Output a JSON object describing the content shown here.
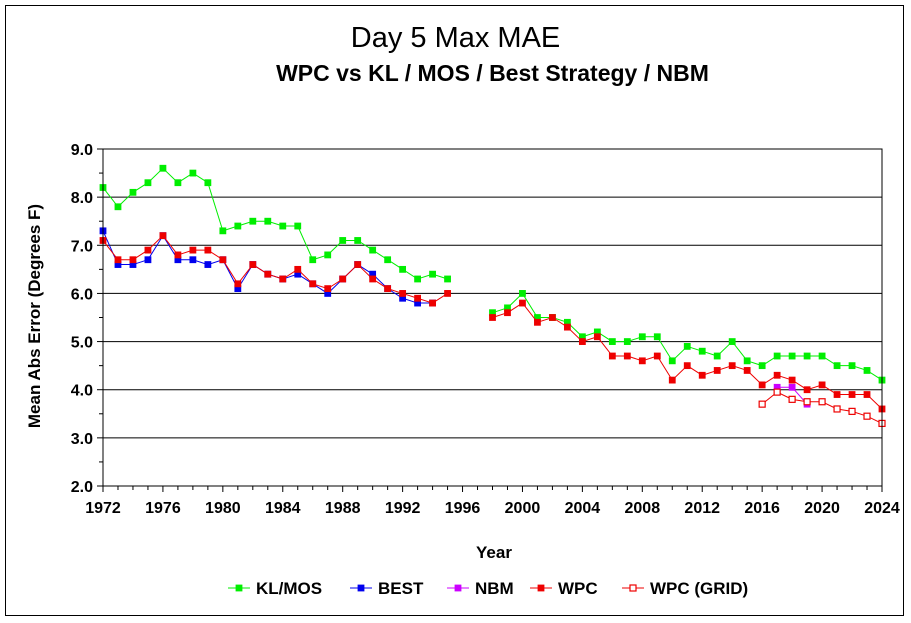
{
  "chart_data": {
    "type": "line",
    "title": "Day 5 Max MAE",
    "subtitle": "WPC vs KL / MOS / Best Strategy / NBM",
    "xlabel": "Year",
    "ylabel": "Mean Abs Error (Degrees F)",
    "xlim": [
      1972,
      2024
    ],
    "ylim": [
      2.0,
      9.0
    ],
    "x_ticks": [
      "1972",
      "1976",
      "1980",
      "1984",
      "1988",
      "1992",
      "1996",
      "2000",
      "2004",
      "2008",
      "2012",
      "2016",
      "2020",
      "2024"
    ],
    "y_ticks": [
      "2.0",
      "3.0",
      "4.0",
      "5.0",
      "6.0",
      "7.0",
      "8.0",
      "9.0"
    ],
    "grid": "horizontal",
    "legend_position": "bottom",
    "series": [
      {
        "name": "KL/MOS",
        "color": "#00ee00",
        "marker": "filled-square",
        "points": [
          [
            1972,
            8.2
          ],
          [
            1973,
            7.8
          ],
          [
            1974,
            8.1
          ],
          [
            1975,
            8.3
          ],
          [
            1976,
            8.6
          ],
          [
            1977,
            8.3
          ],
          [
            1978,
            8.5
          ],
          [
            1979,
            8.3
          ],
          [
            1980,
            7.3
          ],
          [
            1981,
            7.4
          ],
          [
            1982,
            7.5
          ],
          [
            1983,
            7.5
          ],
          [
            1984,
            7.4
          ],
          [
            1985,
            7.4
          ],
          [
            1986,
            6.7
          ],
          [
            1987,
            6.8
          ],
          [
            1988,
            7.1
          ],
          [
            1989,
            7.1
          ],
          [
            1990,
            6.9
          ],
          [
            1991,
            6.7
          ],
          [
            1992,
            6.5
          ],
          [
            1993,
            6.3
          ],
          [
            1994,
            6.4
          ],
          [
            1995,
            6.3
          ],
          [
            1998,
            5.6
          ],
          [
            1999,
            5.7
          ],
          [
            2000,
            6.0
          ],
          [
            2001,
            5.5
          ],
          [
            2002,
            5.5
          ],
          [
            2003,
            5.4
          ],
          [
            2004,
            5.1
          ],
          [
            2005,
            5.2
          ],
          [
            2006,
            5.0
          ],
          [
            2007,
            5.0
          ],
          [
            2008,
            5.1
          ],
          [
            2009,
            5.1
          ],
          [
            2010,
            4.6
          ],
          [
            2011,
            4.9
          ],
          [
            2012,
            4.8
          ],
          [
            2013,
            4.7
          ],
          [
            2014,
            5.0
          ],
          [
            2015,
            4.6
          ],
          [
            2016,
            4.5
          ],
          [
            2017,
            4.7
          ],
          [
            2018,
            4.7
          ],
          [
            2019,
            4.7
          ],
          [
            2020,
            4.7
          ],
          [
            2021,
            4.5
          ],
          [
            2022,
            4.5
          ],
          [
            2023,
            4.4
          ],
          [
            2024,
            4.2
          ]
        ]
      },
      {
        "name": "BEST",
        "color": "#0000ee",
        "marker": "filled-square",
        "points": [
          [
            1972,
            7.3
          ],
          [
            1973,
            6.6
          ],
          [
            1974,
            6.6
          ],
          [
            1975,
            6.7
          ],
          [
            1976,
            7.2
          ],
          [
            1977,
            6.7
          ],
          [
            1978,
            6.7
          ],
          [
            1979,
            6.6
          ],
          [
            1980,
            6.7
          ],
          [
            1981,
            6.1
          ],
          [
            1982,
            6.6
          ],
          [
            1983,
            6.4
          ],
          [
            1984,
            6.3
          ],
          [
            1985,
            6.4
          ],
          [
            1986,
            6.2
          ],
          [
            1987,
            6.0
          ],
          [
            1988,
            6.3
          ],
          [
            1989,
            6.6
          ],
          [
            1990,
            6.4
          ],
          [
            1991,
            6.1
          ],
          [
            1992,
            5.9
          ],
          [
            1993,
            5.8
          ],
          [
            1994,
            5.8
          ]
        ]
      },
      {
        "name": "NBM",
        "color": "#cc00ff",
        "marker": "filled-square",
        "points": [
          [
            2017,
            4.05
          ],
          [
            2018,
            4.05
          ],
          [
            2019,
            3.7
          ]
        ]
      },
      {
        "name": "WPC",
        "color": "#ee0000",
        "marker": "filled-square",
        "points": [
          [
            1972,
            7.1
          ],
          [
            1973,
            6.7
          ],
          [
            1974,
            6.7
          ],
          [
            1975,
            6.9
          ],
          [
            1976,
            7.2
          ],
          [
            1977,
            6.8
          ],
          [
            1978,
            6.9
          ],
          [
            1979,
            6.9
          ],
          [
            1980,
            6.7
          ],
          [
            1981,
            6.2
          ],
          [
            1982,
            6.6
          ],
          [
            1983,
            6.4
          ],
          [
            1984,
            6.3
          ],
          [
            1985,
            6.5
          ],
          [
            1986,
            6.2
          ],
          [
            1987,
            6.1
          ],
          [
            1988,
            6.3
          ],
          [
            1989,
            6.6
          ],
          [
            1990,
            6.3
          ],
          [
            1991,
            6.1
          ],
          [
            1992,
            6.0
          ],
          [
            1993,
            5.9
          ],
          [
            1994,
            5.8
          ],
          [
            1995,
            6.0
          ],
          [
            1998,
            5.5
          ],
          [
            1999,
            5.6
          ],
          [
            2000,
            5.8
          ],
          [
            2001,
            5.4
          ],
          [
            2002,
            5.5
          ],
          [
            2003,
            5.3
          ],
          [
            2004,
            5.0
          ],
          [
            2005,
            5.1
          ],
          [
            2006,
            4.7
          ],
          [
            2007,
            4.7
          ],
          [
            2008,
            4.6
          ],
          [
            2009,
            4.7
          ],
          [
            2010,
            4.2
          ],
          [
            2011,
            4.5
          ],
          [
            2012,
            4.3
          ],
          [
            2013,
            4.4
          ],
          [
            2014,
            4.5
          ],
          [
            2015,
            4.4
          ],
          [
            2016,
            4.1
          ],
          [
            2017,
            4.3
          ],
          [
            2018,
            4.2
          ],
          [
            2019,
            4.0
          ],
          [
            2020,
            4.1
          ],
          [
            2021,
            3.9
          ],
          [
            2022,
            3.9
          ],
          [
            2023,
            3.9
          ],
          [
            2024,
            3.6
          ]
        ]
      },
      {
        "name": "WPC (GRID)",
        "color": "#ee0000",
        "marker": "open-square",
        "points": [
          [
            2016,
            3.7
          ],
          [
            2017,
            3.95
          ],
          [
            2018,
            3.8
          ],
          [
            2019,
            3.75
          ],
          [
            2020,
            3.75
          ],
          [
            2021,
            3.6
          ],
          [
            2022,
            3.55
          ],
          [
            2023,
            3.45
          ],
          [
            2024,
            3.3
          ]
        ]
      }
    ]
  }
}
